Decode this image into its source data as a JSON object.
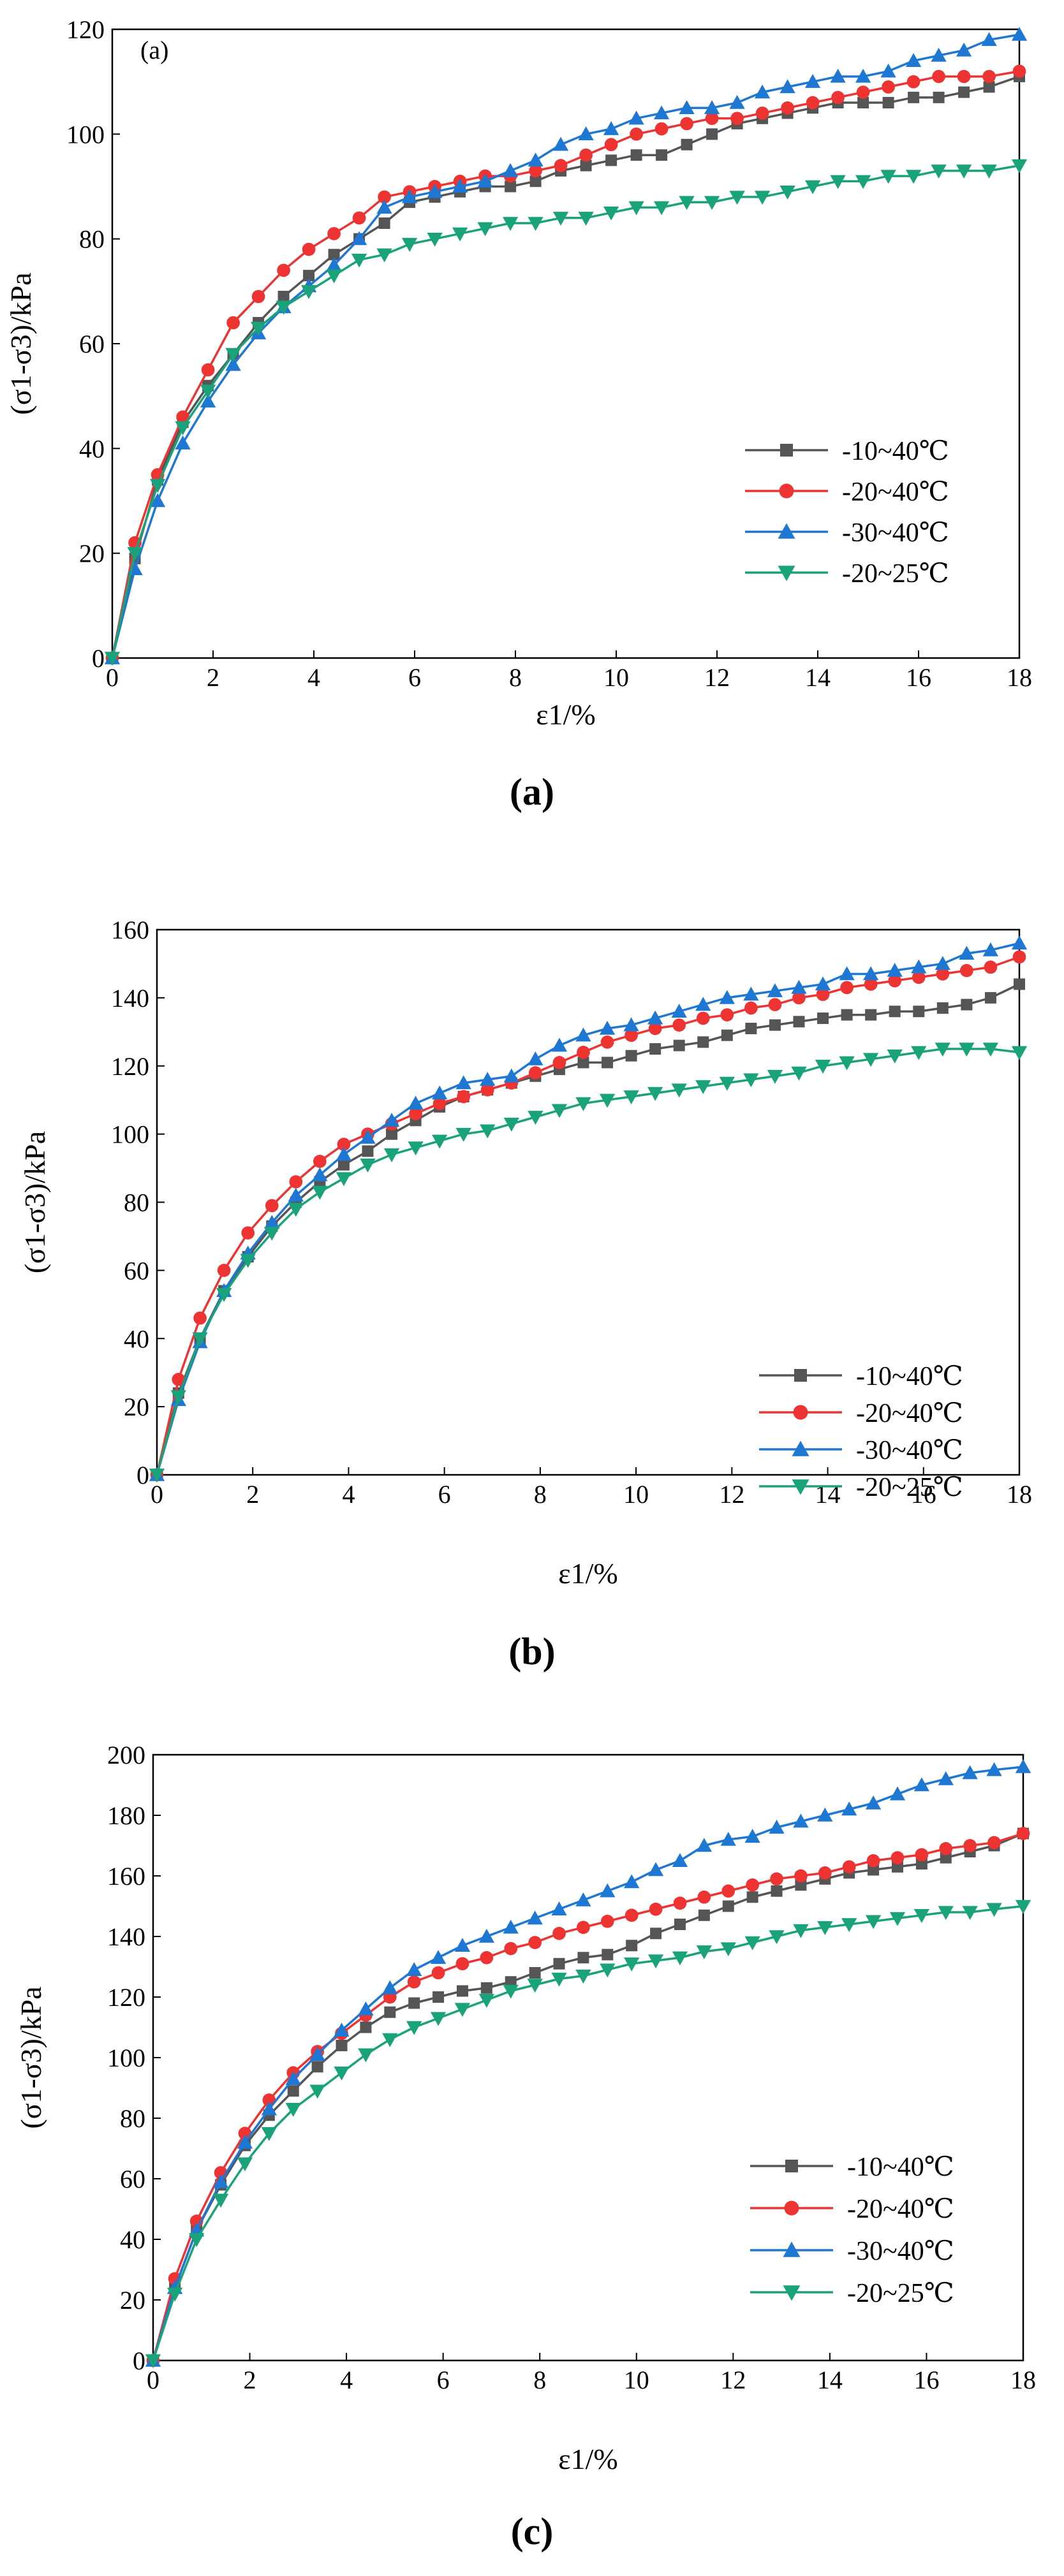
{
  "chart_data": [
    {
      "type": "line",
      "panel_label": "(a)",
      "inner_label": "(a)",
      "xlabel": "ε1/%",
      "ylabel": "(σ1-σ3)/kPa",
      "xlim": [
        0,
        18
      ],
      "ylim": [
        0,
        120
      ],
      "x_ticks": [
        "0",
        "2",
        "4",
        "6",
        "8",
        "10",
        "12",
        "14",
        "16",
        "18"
      ],
      "y_ticks": [
        "0",
        "20",
        "40",
        "60",
        "80",
        "100",
        "120"
      ],
      "legend_position": "bottom-right",
      "series": [
        {
          "name": "-10~40℃",
          "color": "#555555",
          "marker": "square",
          "x": [
            0,
            0.45,
            0.9,
            1.4,
            1.9,
            2.4,
            2.9,
            3.4,
            3.9,
            4.4,
            4.9,
            5.4,
            5.9,
            6.4,
            6.9,
            7.4,
            7.9,
            8.4,
            8.9,
            9.4,
            9.9,
            10.4,
            10.9,
            11.4,
            11.9,
            12.4,
            12.9,
            13.4,
            13.9,
            14.4,
            14.9,
            15.4,
            15.9,
            16.4,
            16.9,
            17.4,
            18
          ],
          "y": [
            0,
            19,
            34,
            45,
            52,
            58,
            64,
            69,
            73,
            77,
            80,
            83,
            87,
            88,
            89,
            90,
            90,
            91,
            93,
            94,
            95,
            96,
            96,
            98,
            100,
            102,
            103,
            104,
            105,
            106,
            106,
            106,
            107,
            107,
            108,
            109,
            111
          ]
        },
        {
          "name": "-20~40℃",
          "color": "#ee3333",
          "marker": "circle",
          "x": [
            0,
            0.45,
            0.9,
            1.4,
            1.9,
            2.4,
            2.9,
            3.4,
            3.9,
            4.4,
            4.9,
            5.4,
            5.9,
            6.4,
            6.9,
            7.4,
            7.9,
            8.4,
            8.9,
            9.4,
            9.9,
            10.4,
            10.9,
            11.4,
            11.9,
            12.4,
            12.9,
            13.4,
            13.9,
            14.4,
            14.9,
            15.4,
            15.9,
            16.4,
            16.9,
            17.4,
            18
          ],
          "y": [
            0,
            22,
            35,
            46,
            55,
            64,
            69,
            74,
            78,
            81,
            84,
            88,
            89,
            90,
            91,
            92,
            92,
            93,
            94,
            96,
            98,
            100,
            101,
            102,
            103,
            103,
            104,
            105,
            106,
            107,
            108,
            109,
            110,
            111,
            111,
            111,
            112
          ]
        },
        {
          "name": "-30~40℃",
          "color": "#1f77d4",
          "marker": "triangle-up",
          "x": [
            0,
            0.45,
            0.9,
            1.4,
            1.9,
            2.4,
            2.9,
            3.4,
            3.9,
            4.4,
            4.9,
            5.4,
            5.9,
            6.4,
            6.9,
            7.4,
            7.9,
            8.4,
            8.9,
            9.4,
            9.9,
            10.4,
            10.9,
            11.4,
            11.9,
            12.4,
            12.9,
            13.4,
            13.9,
            14.4,
            14.9,
            15.4,
            15.9,
            16.4,
            16.9,
            17.4,
            18
          ],
          "y": [
            0,
            17,
            30,
            41,
            49,
            56,
            62,
            67,
            71,
            75,
            80,
            86,
            88,
            89,
            90,
            91,
            93,
            95,
            98,
            100,
            101,
            103,
            104,
            105,
            105,
            106,
            108,
            109,
            110,
            111,
            111,
            112,
            114,
            115,
            116,
            118,
            119
          ]
        },
        {
          "name": "-20~25℃",
          "color": "#1aa37a",
          "marker": "triangle-down",
          "x": [
            0,
            0.45,
            0.9,
            1.4,
            1.9,
            2.4,
            2.9,
            3.4,
            3.9,
            4.4,
            4.9,
            5.4,
            5.9,
            6.4,
            6.9,
            7.4,
            7.9,
            8.4,
            8.9,
            9.4,
            9.9,
            10.4,
            10.9,
            11.4,
            11.9,
            12.4,
            12.9,
            13.4,
            13.9,
            14.4,
            14.9,
            15.4,
            15.9,
            16.4,
            16.9,
            17.4,
            18
          ],
          "y": [
            0,
            20,
            33,
            44,
            51,
            58,
            63,
            67,
            70,
            73,
            76,
            77,
            79,
            80,
            81,
            82,
            83,
            83,
            84,
            84,
            85,
            86,
            86,
            87,
            87,
            88,
            88,
            89,
            90,
            91,
            91,
            92,
            92,
            93,
            93,
            93,
            94
          ]
        }
      ]
    },
    {
      "type": "line",
      "panel_label": "(b)",
      "xlabel": "ε1/%",
      "ylabel": "(σ1-σ3)/kPa",
      "xlim": [
        0,
        18
      ],
      "ylim": [
        0,
        160
      ],
      "x_ticks": [
        "0",
        "2",
        "4",
        "6",
        "8",
        "10",
        "12",
        "14",
        "16",
        "18"
      ],
      "y_ticks": [
        "0",
        "20",
        "40",
        "60",
        "80",
        "100",
        "120",
        "140",
        "160"
      ],
      "legend_position": "bottom-right",
      "series": [
        {
          "name": "-10~40℃",
          "color": "#555555",
          "marker": "square",
          "x": [
            0,
            0.45,
            0.9,
            1.4,
            1.9,
            2.4,
            2.9,
            3.4,
            3.9,
            4.4,
            4.9,
            5.4,
            5.9,
            6.4,
            6.9,
            7.4,
            7.9,
            8.4,
            8.9,
            9.4,
            9.9,
            10.4,
            10.9,
            11.4,
            11.9,
            12.4,
            12.9,
            13.4,
            13.9,
            14.4,
            14.9,
            15.4,
            15.9,
            16.4,
            16.9,
            17.4,
            18
          ],
          "y": [
            0,
            24,
            40,
            54,
            64,
            73,
            80,
            86,
            91,
            95,
            100,
            104,
            108,
            111,
            113,
            115,
            117,
            119,
            121,
            121,
            123,
            125,
            126,
            127,
            129,
            131,
            132,
            133,
            134,
            135,
            135,
            136,
            136,
            137,
            138,
            140,
            144
          ]
        },
        {
          "name": "-20~40℃",
          "color": "#ee3333",
          "marker": "circle",
          "x": [
            0,
            0.45,
            0.9,
            1.4,
            1.9,
            2.4,
            2.9,
            3.4,
            3.9,
            4.4,
            4.9,
            5.4,
            5.9,
            6.4,
            6.9,
            7.4,
            7.9,
            8.4,
            8.9,
            9.4,
            9.9,
            10.4,
            10.9,
            11.4,
            11.9,
            12.4,
            12.9,
            13.4,
            13.9,
            14.4,
            14.9,
            15.4,
            15.9,
            16.4,
            16.9,
            17.4,
            18
          ],
          "y": [
            0,
            28,
            46,
            60,
            71,
            79,
            86,
            92,
            97,
            100,
            103,
            106,
            109,
            111,
            113,
            115,
            118,
            121,
            124,
            127,
            129,
            131,
            132,
            134,
            135,
            137,
            138,
            140,
            141,
            143,
            144,
            145,
            146,
            147,
            148,
            149,
            152
          ]
        },
        {
          "name": "-30~40℃",
          "color": "#1f77d4",
          "marker": "triangle-up",
          "x": [
            0,
            0.45,
            0.9,
            1.4,
            1.9,
            2.4,
            2.9,
            3.4,
            3.9,
            4.4,
            4.9,
            5.4,
            5.9,
            6.4,
            6.9,
            7.4,
            7.9,
            8.4,
            8.9,
            9.4,
            9.9,
            10.4,
            10.9,
            11.4,
            11.9,
            12.4,
            12.9,
            13.4,
            13.9,
            14.4,
            14.9,
            15.4,
            15.9,
            16.4,
            16.9,
            17.4,
            18
          ],
          "y": [
            0,
            22,
            39,
            54,
            65,
            74,
            82,
            88,
            94,
            99,
            104,
            109,
            112,
            115,
            116,
            117,
            122,
            126,
            129,
            131,
            132,
            134,
            136,
            138,
            140,
            141,
            142,
            143,
            144,
            147,
            147,
            148,
            149,
            150,
            153,
            154,
            156
          ]
        },
        {
          "name": "-20~25℃",
          "color": "#1aa37a",
          "marker": "triangle-down",
          "x": [
            0,
            0.45,
            0.9,
            1.4,
            1.9,
            2.4,
            2.9,
            3.4,
            3.9,
            4.4,
            4.9,
            5.4,
            5.9,
            6.4,
            6.9,
            7.4,
            7.9,
            8.4,
            8.9,
            9.4,
            9.9,
            10.4,
            10.9,
            11.4,
            11.9,
            12.4,
            12.9,
            13.4,
            13.9,
            14.4,
            14.9,
            15.4,
            15.9,
            16.4,
            16.9,
            17.4,
            18
          ],
          "y": [
            0,
            23,
            40,
            53,
            63,
            71,
            78,
            83,
            87,
            91,
            94,
            96,
            98,
            100,
            101,
            103,
            105,
            107,
            109,
            110,
            111,
            112,
            113,
            114,
            115,
            116,
            117,
            118,
            120,
            121,
            122,
            123,
            124,
            125,
            125,
            125,
            124
          ]
        }
      ]
    },
    {
      "type": "line",
      "panel_label": "(c)",
      "xlabel": "ε1/%",
      "ylabel": "(σ1-σ3)/kPa",
      "xlim": [
        0,
        18
      ],
      "ylim": [
        0,
        200
      ],
      "x_ticks": [
        "0",
        "2",
        "4",
        "6",
        "8",
        "10",
        "12",
        "14",
        "16",
        "18"
      ],
      "y_ticks": [
        "0",
        "20",
        "40",
        "60",
        "80",
        "100",
        "120",
        "140",
        "160",
        "180",
        "200"
      ],
      "legend_position": "bottom-right",
      "series": [
        {
          "name": "-10~40℃",
          "color": "#555555",
          "marker": "square",
          "x": [
            0,
            0.45,
            0.9,
            1.4,
            1.9,
            2.4,
            2.9,
            3.4,
            3.9,
            4.4,
            4.9,
            5.4,
            5.9,
            6.4,
            6.9,
            7.4,
            7.9,
            8.4,
            8.9,
            9.4,
            9.9,
            10.4,
            10.9,
            11.4,
            11.9,
            12.4,
            12.9,
            13.4,
            13.9,
            14.4,
            14.9,
            15.4,
            15.9,
            16.4,
            16.9,
            17.4,
            18
          ],
          "y": [
            0,
            24,
            43,
            58,
            71,
            81,
            89,
            97,
            104,
            110,
            115,
            118,
            120,
            122,
            123,
            125,
            128,
            131,
            133,
            134,
            137,
            141,
            144,
            147,
            150,
            153,
            155,
            157,
            159,
            161,
            162,
            163,
            164,
            166,
            168,
            170,
            174
          ]
        },
        {
          "name": "-20~40℃",
          "color": "#ee3333",
          "marker": "circle",
          "x": [
            0,
            0.45,
            0.9,
            1.4,
            1.9,
            2.4,
            2.9,
            3.4,
            3.9,
            4.4,
            4.9,
            5.4,
            5.9,
            6.4,
            6.9,
            7.4,
            7.9,
            8.4,
            8.9,
            9.4,
            9.9,
            10.4,
            10.9,
            11.4,
            11.9,
            12.4,
            12.9,
            13.4,
            13.9,
            14.4,
            14.9,
            15.4,
            15.9,
            16.4,
            16.9,
            17.4,
            18
          ],
          "y": [
            0,
            27,
            46,
            62,
            75,
            86,
            95,
            102,
            108,
            114,
            120,
            125,
            128,
            131,
            133,
            136,
            138,
            141,
            143,
            145,
            147,
            149,
            151,
            153,
            155,
            157,
            159,
            160,
            161,
            163,
            165,
            166,
            167,
            169,
            170,
            171,
            174
          ]
        },
        {
          "name": "-30~40℃",
          "color": "#1f77d4",
          "marker": "triangle-up",
          "x": [
            0,
            0.45,
            0.9,
            1.4,
            1.9,
            2.4,
            2.9,
            3.4,
            3.9,
            4.4,
            4.9,
            5.4,
            5.9,
            6.4,
            6.9,
            7.4,
            7.9,
            8.4,
            8.9,
            9.4,
            9.9,
            10.4,
            10.9,
            11.4,
            11.9,
            12.4,
            12.9,
            13.4,
            13.9,
            14.4,
            14.9,
            15.4,
            15.9,
            16.4,
            16.9,
            17.4,
            18
          ],
          "y": [
            0,
            24,
            43,
            59,
            72,
            83,
            93,
            101,
            109,
            116,
            123,
            129,
            133,
            137,
            140,
            143,
            146,
            149,
            152,
            155,
            158,
            162,
            165,
            170,
            172,
            173,
            176,
            178,
            180,
            182,
            184,
            187,
            190,
            192,
            194,
            195,
            196
          ]
        },
        {
          "name": "-20~25℃",
          "color": "#1aa37a",
          "marker": "triangle-down",
          "x": [
            0,
            0.45,
            0.9,
            1.4,
            1.9,
            2.4,
            2.9,
            3.4,
            3.9,
            4.4,
            4.9,
            5.4,
            5.9,
            6.4,
            6.9,
            7.4,
            7.9,
            8.4,
            8.9,
            9.4,
            9.9,
            10.4,
            10.9,
            11.4,
            11.9,
            12.4,
            12.9,
            13.4,
            13.9,
            14.4,
            14.9,
            15.4,
            15.9,
            16.4,
            16.9,
            17.4,
            18
          ],
          "y": [
            0,
            22,
            40,
            53,
            65,
            75,
            83,
            89,
            95,
            101,
            106,
            110,
            113,
            116,
            119,
            122,
            124,
            126,
            127,
            129,
            131,
            132,
            133,
            135,
            136,
            138,
            140,
            142,
            143,
            144,
            145,
            146,
            147,
            148,
            148,
            149,
            150
          ]
        }
      ]
    }
  ]
}
